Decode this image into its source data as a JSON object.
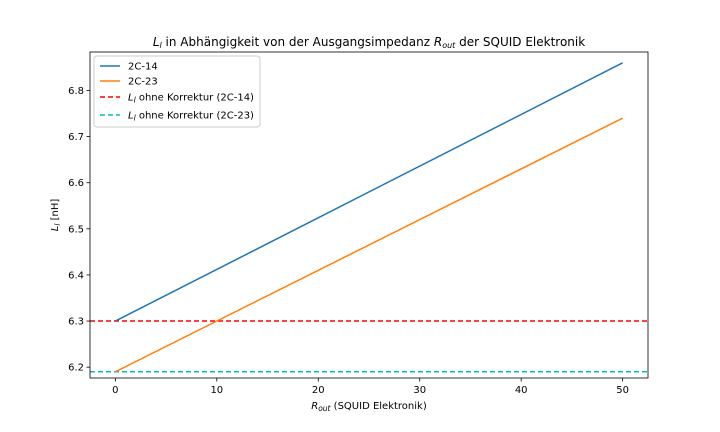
{
  "chart_data": {
    "type": "line",
    "title_parts": {
      "prefix_main": "L",
      "prefix_sub": "l",
      "middle": " in Abhängigkeit von der Ausgangsimpedanz ",
      "r_main": "R",
      "r_sub": "out",
      "suffix": " der SQUID Elektronik"
    },
    "xlabel_parts": {
      "main": "R",
      "sub": "out",
      "rest": " (SQUID Elektronik)"
    },
    "ylabel_parts": {
      "main": "L",
      "sub": "l",
      "rest": " [nH]"
    },
    "xlim": [
      -2.5,
      52.5
    ],
    "ylim": [
      6.1765,
      6.8835
    ],
    "xticks": [
      0,
      10,
      20,
      30,
      40,
      50
    ],
    "yticks": [
      6.2,
      6.3,
      6.4,
      6.5,
      6.6,
      6.7,
      6.8
    ],
    "grid": false,
    "legend_position": "top-left",
    "series": [
      {
        "name": "2C-14",
        "color": "#1f77b4",
        "style": "solid",
        "x": [
          0,
          50
        ],
        "y": [
          6.3,
          6.86
        ]
      },
      {
        "name": "2C-23",
        "color": "#ff7f0e",
        "style": "solid",
        "x": [
          0,
          50
        ],
        "y": [
          6.19,
          6.74
        ]
      }
    ],
    "hlines": [
      {
        "name_main": "L",
        "name_sub": "l",
        "name_rest": " ohne Korrektur (2C-14)",
        "color": "#ff0000",
        "style": "dashed",
        "y": 6.3
      },
      {
        "name_main": "L",
        "name_sub": "l",
        "name_rest": " ohne Korrektur (2C-23)",
        "color": "#00bfbf",
        "style": "dashed",
        "y": 6.19
      }
    ]
  }
}
